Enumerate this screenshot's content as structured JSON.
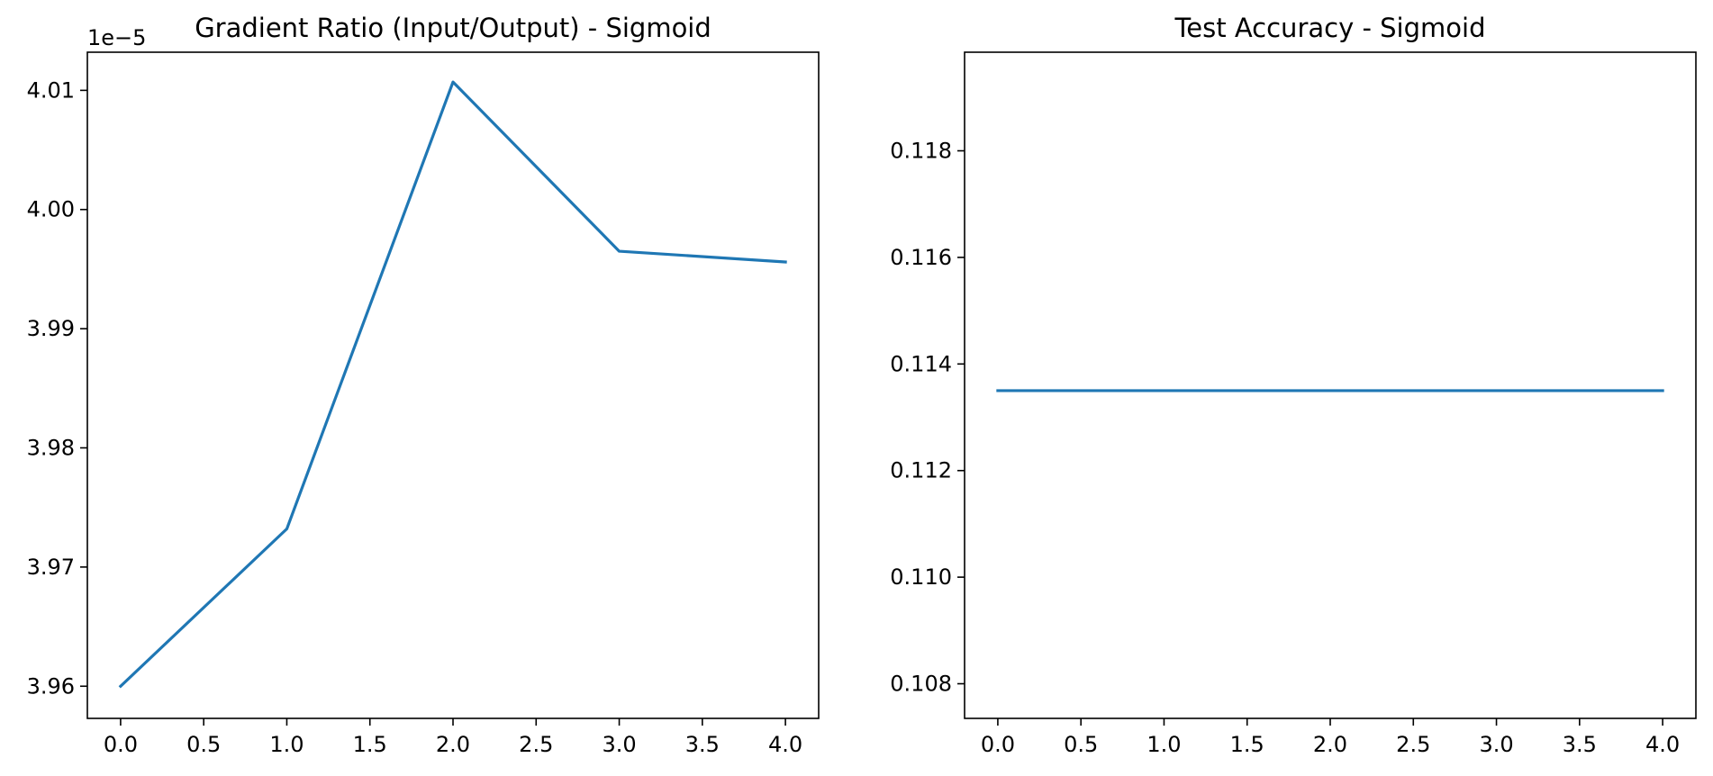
{
  "chart_data": [
    {
      "type": "line",
      "title": "Gradient Ratio (Input/Output) - Sigmoid",
      "xlabel": "",
      "ylabel": "",
      "y_offset_label": "1e−5",
      "x": [
        0,
        1,
        2,
        3,
        4
      ],
      "series": [
        {
          "values": [
            3.96e-05,
            3.9732e-05,
            4.0107e-05,
            3.9965e-05,
            3.9956e-05
          ],
          "color": "#1f77b4"
        }
      ],
      "xlim": [
        -0.2,
        4.2
      ],
      "ylim": [
        3.9573e-05,
        4.0132e-05
      ],
      "xticks": [
        0.0,
        0.5,
        1.0,
        1.5,
        2.0,
        2.5,
        3.0,
        3.5,
        4.0
      ],
      "xtick_labels": [
        "0.0",
        "0.5",
        "1.0",
        "1.5",
        "2.0",
        "2.5",
        "3.0",
        "3.5",
        "4.0"
      ],
      "yticks": [
        3.96e-05,
        3.97e-05,
        3.98e-05,
        3.99e-05,
        4e-05,
        4.01e-05
      ],
      "ytick_labels": [
        "3.96",
        "3.97",
        "3.98",
        "3.99",
        "4.00",
        "4.01"
      ],
      "grid": false,
      "legend": "none"
    },
    {
      "type": "line",
      "title": "Test Accuracy - Sigmoid",
      "xlabel": "",
      "ylabel": "",
      "x": [
        0,
        1,
        2,
        3,
        4
      ],
      "series": [
        {
          "values": [
            0.1135,
            0.1135,
            0.1135,
            0.1135,
            0.1135
          ],
          "color": "#1f77b4"
        }
      ],
      "xlim": [
        -0.2,
        4.2
      ],
      "ylim": [
        0.10735,
        0.11985
      ],
      "xticks": [
        0.0,
        0.5,
        1.0,
        1.5,
        2.0,
        2.5,
        3.0,
        3.5,
        4.0
      ],
      "xtick_labels": [
        "0.0",
        "0.5",
        "1.0",
        "1.5",
        "2.0",
        "2.5",
        "3.0",
        "3.5",
        "4.0"
      ],
      "yticks": [
        0.108,
        0.11,
        0.112,
        0.114,
        0.116,
        0.118
      ],
      "ytick_labels": [
        "0.108",
        "0.110",
        "0.112",
        "0.114",
        "0.116",
        "0.118"
      ],
      "grid": false,
      "legend": "none"
    }
  ]
}
